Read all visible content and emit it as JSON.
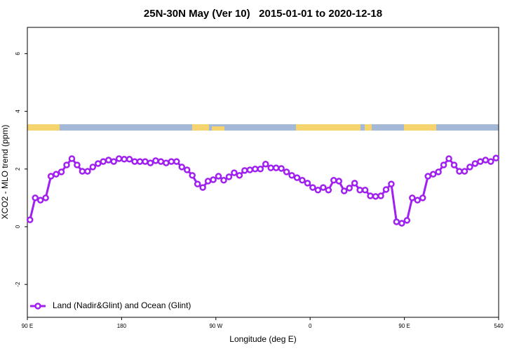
{
  "chart_data": {
    "type": "line",
    "title": "25N-30N May (Ver 10)   2015-01-01 to 2020-12-18",
    "xlabel": "Longitude (deg E)",
    "ylabel": "XCO2 - MLO trend (ppm)",
    "xlim": [
      90,
      540
    ],
    "ylim": [
      -3.14,
      6.91
    ],
    "xticks": [
      {
        "value": 90,
        "label": "90 E"
      },
      180,
      {
        "value": 270,
        "label": "90 W"
      },
      {
        "value": 360,
        "label": "0"
      },
      {
        "value": 450,
        "label": "90 E"
      },
      540
    ],
    "yticks": [
      -2,
      0,
      2,
      4,
      6
    ],
    "legend": "bottom-left",
    "x": [
      92.5,
      97.5,
      102.5,
      107.5,
      112.5,
      117.5,
      122.5,
      127.5,
      132.5,
      137.5,
      142.5,
      147.5,
      152.5,
      157.5,
      162.5,
      167.5,
      172.5,
      177.5,
      182.5,
      187.5,
      192.5,
      197.5,
      202.5,
      207.5,
      212.5,
      217.5,
      222.5,
      227.5,
      232.5,
      237.5,
      242.5,
      247.5,
      252.5,
      257.5,
      262.5,
      267.5,
      272.5,
      277.5,
      282.5,
      287.5,
      292.5,
      297.5,
      302.5,
      307.5,
      312.5,
      317.5,
      322.5,
      327.5,
      332.5,
      337.5,
      342.5,
      347.5,
      352.5,
      357.5,
      362.5,
      367.5,
      372.5,
      377.5,
      382.5,
      387.5,
      392.5,
      397.5,
      402.5,
      407.5,
      412.5,
      417.5,
      422.5,
      427.5,
      432.5,
      437.5,
      442.5,
      447.5,
      452.5,
      457.5,
      462.5,
      467.5,
      472.5,
      477.5,
      482.5,
      487.5,
      492.5,
      497.5,
      502.5,
      507.5,
      512.5,
      517.5,
      522.5,
      527.5,
      532.5,
      537.5
    ],
    "series": [
      {
        "name": "Land (Nadir&Glint) and Ocean (Glint)",
        "color": "#a020f0",
        "values": [
          0.24,
          1.0,
          0.92,
          1.0,
          1.75,
          1.82,
          1.9,
          2.14,
          2.36,
          2.14,
          1.92,
          1.92,
          2.07,
          2.19,
          2.26,
          2.31,
          2.26,
          2.36,
          2.34,
          2.34,
          2.26,
          2.26,
          2.26,
          2.21,
          2.29,
          2.26,
          2.21,
          2.26,
          2.26,
          2.07,
          1.97,
          1.78,
          1.48,
          1.36,
          1.58,
          1.63,
          1.75,
          1.61,
          1.73,
          1.87,
          1.78,
          1.95,
          1.97,
          2.0,
          2.0,
          2.17,
          2.04,
          2.04,
          2.02,
          1.9,
          1.78,
          1.7,
          1.61,
          1.51,
          1.36,
          1.27,
          1.36,
          1.27,
          1.61,
          1.58,
          1.24,
          1.34,
          1.51,
          1.27,
          1.27,
          1.07,
          1.05,
          1.07,
          1.29,
          1.48,
          0.17,
          0.12,
          0.22,
          1.0,
          0.92,
          1.0,
          1.75,
          1.82,
          1.9,
          2.14,
          2.36,
          2.14,
          1.92,
          1.92,
          2.07,
          2.19,
          2.26,
          2.31,
          2.26,
          2.38
        ]
      }
    ]
  }
}
